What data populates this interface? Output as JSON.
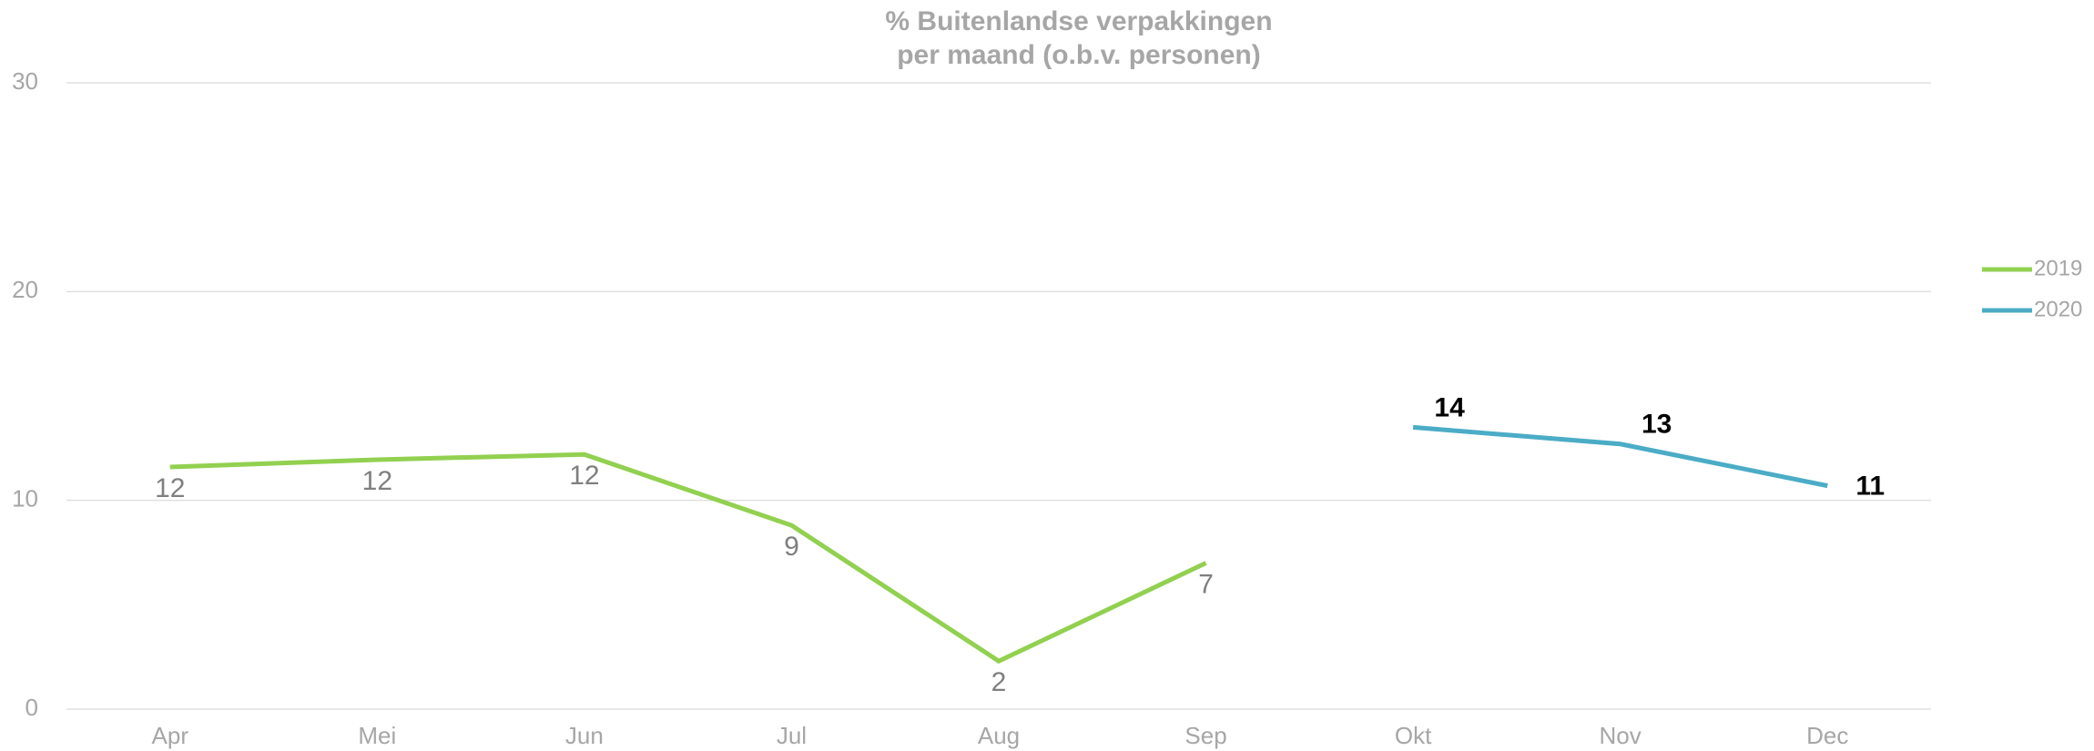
{
  "chart_data": {
    "type": "line",
    "title": [
      "% Buitenlandse verpakkingen",
      "per maand (o.b.v. personen)"
    ],
    "categories": [
      "Apr",
      "Mei",
      "Jun",
      "Jul",
      "Aug",
      "Sep",
      "Okt",
      "Nov",
      "Dec"
    ],
    "series": [
      {
        "name": "2019",
        "color": "#92d050",
        "values": [
          11.6,
          11.95,
          12.2,
          8.8,
          2.3,
          7.0,
          null,
          null,
          null
        ],
        "value_labels": [
          "12",
          "12",
          "12",
          "9",
          "2",
          "7",
          null,
          null,
          null
        ]
      },
      {
        "name": "2020",
        "color": "#4bacc6",
        "values": [
          null,
          null,
          null,
          null,
          null,
          null,
          13.5,
          12.7,
          10.7
        ],
        "value_labels": [
          null,
          null,
          null,
          null,
          null,
          null,
          "14",
          "13",
          "11"
        ]
      }
    ],
    "ylim": [
      0,
      30
    ],
    "yticks": [
      0,
      10,
      20,
      30
    ],
    "grid": true,
    "legend": "right"
  }
}
